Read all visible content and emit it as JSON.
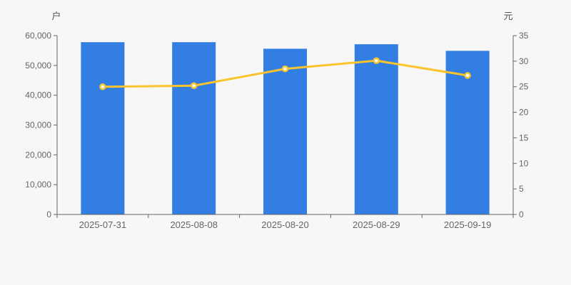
{
  "chart_data": {
    "type": "bar+line",
    "title": "",
    "categories": [
      "2025-07-31",
      "2025-08-08",
      "2025-08-20",
      "2025-08-29",
      "2025-09-19"
    ],
    "series": [
      {
        "name": "bar-series",
        "type": "bar",
        "y_axis": "left",
        "color": "#337ee2",
        "values": [
          57800,
          57800,
          55600,
          57100,
          54900
        ]
      },
      {
        "name": "line-series",
        "type": "line",
        "y_axis": "right",
        "color": "#fac42d",
        "point_fill": "#ffffff",
        "values": [
          25.0,
          25.2,
          28.5,
          30.1,
          27.2
        ]
      }
    ],
    "left_axis": {
      "label": "户",
      "min": 0,
      "max": 60000,
      "step": 10000,
      "tick_labels": [
        "0",
        "10,000",
        "20,000",
        "30,000",
        "40,000",
        "50,000",
        "60,000"
      ]
    },
    "right_axis": {
      "label": "元",
      "min": 0,
      "max": 35,
      "step": 5,
      "tick_labels": [
        "0",
        "5",
        "10",
        "15",
        "20",
        "25",
        "30",
        "35"
      ]
    },
    "grid": false,
    "legend": false,
    "colors": {
      "background": "#f7f7f7",
      "axis": "#666666",
      "tick_text": "#666666",
      "bar": "#337ee2",
      "line": "#fac42d"
    }
  }
}
